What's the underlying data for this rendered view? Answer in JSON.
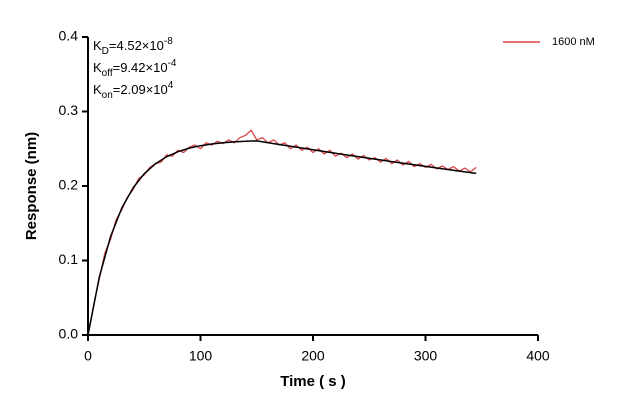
{
  "chart_data": {
    "type": "line",
    "x_label": "Time ( s )",
    "y_label": "Response (nm)",
    "xlim": [
      0,
      400
    ],
    "xticks": [
      0,
      100,
      200,
      300,
      400
    ],
    "ylim": [
      0,
      0.4
    ],
    "yticks": [
      {
        "value": 0,
        "label": "0.0"
      },
      0.1,
      0.2,
      0.3,
      0.4
    ],
    "legend_position": "upper right",
    "annotations": [
      {
        "symbol": "K",
        "sub": "D",
        "text": "=4.52×10",
        "sup": "-8"
      },
      {
        "symbol": "K",
        "sub": "off",
        "text": "=9.42×10",
        "sup": "-4"
      },
      {
        "symbol": "K",
        "sub": "on",
        "text": "=2.09×10",
        "sup": "4"
      }
    ],
    "series": [
      {
        "name": "1600 nM",
        "color": "#d9474b",
        "x": [
          0,
          5,
          10,
          15,
          20,
          25,
          30,
          35,
          40,
          45,
          50,
          55,
          60,
          65,
          70,
          75,
          80,
          85,
          90,
          95,
          100,
          105,
          110,
          115,
          120,
          125,
          130,
          135,
          140,
          145,
          150,
          155,
          160,
          165,
          170,
          175,
          180,
          185,
          190,
          195,
          200,
          205,
          210,
          215,
          220,
          225,
          230,
          235,
          240,
          245,
          250,
          255,
          260,
          265,
          270,
          275,
          280,
          285,
          290,
          295,
          300,
          305,
          310,
          315,
          320,
          325,
          330,
          335,
          340,
          345
        ],
        "values": [
          0,
          0.04,
          0.075,
          0.11,
          0.128,
          0.155,
          0.168,
          0.185,
          0.195,
          0.21,
          0.215,
          0.225,
          0.23,
          0.232,
          0.242,
          0.24,
          0.248,
          0.245,
          0.252,
          0.255,
          0.25,
          0.258,
          0.255,
          0.26,
          0.257,
          0.262,
          0.258,
          0.265,
          0.268,
          0.275,
          0.262,
          0.265,
          0.258,
          0.262,
          0.255,
          0.258,
          0.25,
          0.255,
          0.248,
          0.252,
          0.245,
          0.25,
          0.243,
          0.248,
          0.24,
          0.244,
          0.238,
          0.243,
          0.236,
          0.241,
          0.235,
          0.238,
          0.232,
          0.237,
          0.23,
          0.235,
          0.228,
          0.233,
          0.226,
          0.23,
          0.225,
          0.229,
          0.223,
          0.227,
          0.222,
          0.226,
          0.22,
          0.224,
          0.219,
          0.225
        ]
      },
      {
        "color": "#000000",
        "x": [
          0,
          10,
          20,
          30,
          40,
          50,
          60,
          70,
          80,
          90,
          100,
          110,
          120,
          130,
          140,
          150,
          165,
          180,
          195,
          210,
          225,
          240,
          255,
          270,
          285,
          300,
          315,
          330,
          345
        ],
        "values": [
          0,
          0.0774,
          0.1319,
          0.1703,
          0.1973,
          0.2165,
          0.2299,
          0.2394,
          0.2461,
          0.2508,
          0.2541,
          0.2564,
          0.2581,
          0.2593,
          0.2601,
          0.2606,
          0.2569,
          0.2533,
          0.2498,
          0.2463,
          0.2428,
          0.2394,
          0.2361,
          0.2327,
          0.2295,
          0.2263,
          0.2231,
          0.22,
          0.2169
        ]
      }
    ]
  }
}
